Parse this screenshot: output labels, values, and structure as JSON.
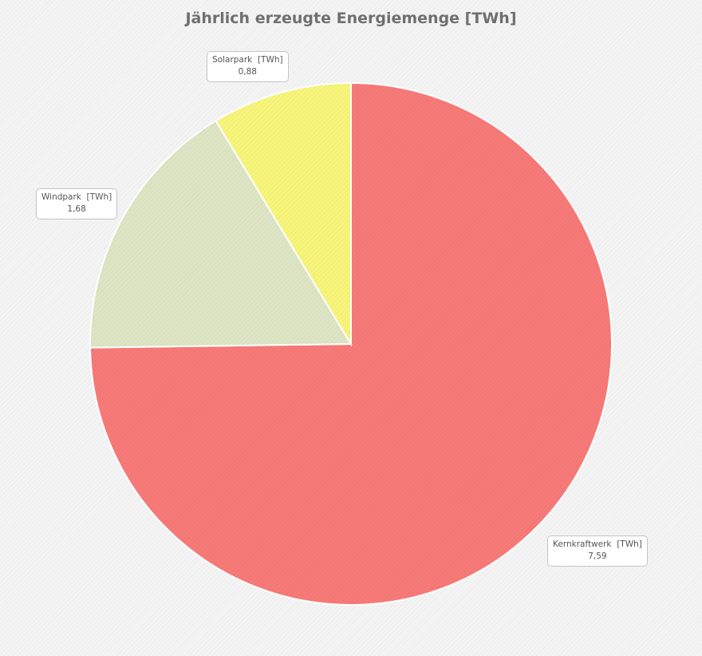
{
  "chart_data": {
    "type": "pie",
    "title": "Jährlich erzeugte Energiemenge [TWh]",
    "unit": "TWh",
    "slices": [
      {
        "name": "Kernkraftwerk",
        "value": 7.59,
        "value_label": "7,59",
        "color": "#f77a78"
      },
      {
        "name": "Windpark",
        "value": 1.68,
        "value_label": "1,68",
        "color": "#dde5c4"
      },
      {
        "name": "Solarpark",
        "value": 0.88,
        "value_label": "0,88",
        "color": "#f7f57a"
      }
    ],
    "legend": "none",
    "data_labels": true
  }
}
